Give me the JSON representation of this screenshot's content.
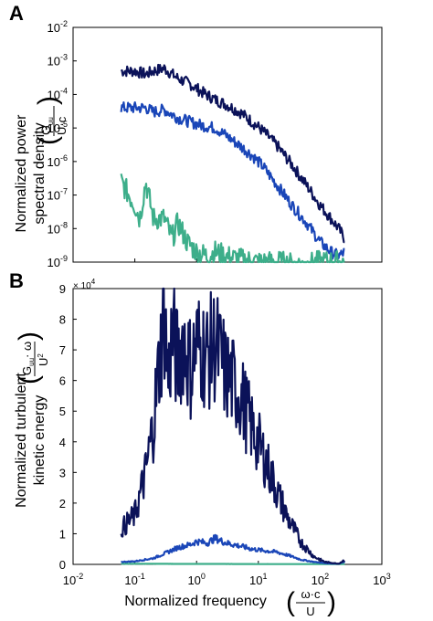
{
  "panel_a": {
    "letter": "A",
    "ylabel_line1": "Normalized power",
    "ylabel_line2": "spectral density",
    "frac_num": "G",
    "frac_num_sub": "uu",
    "frac_den": "U·c",
    "y_ticks": [
      {
        "base": "10",
        "exp": "-2"
      },
      {
        "base": "10",
        "exp": "-3"
      },
      {
        "base": "10",
        "exp": "-4"
      },
      {
        "base": "10",
        "exp": "-5"
      },
      {
        "base": "10",
        "exp": "-6"
      },
      {
        "base": "10",
        "exp": "-7"
      },
      {
        "base": "10",
        "exp": "-8"
      },
      {
        "base": "10",
        "exp": "-9"
      }
    ]
  },
  "panel_b": {
    "letter": "B",
    "ylabel_line1": "Normalized turbulent",
    "ylabel_line2": "kinetic energy",
    "frac_num": "G",
    "frac_num_sub": "uu",
    "frac_num_rest": "· ω",
    "frac_den": "U",
    "frac_den_sup": "2",
    "multiplier": "× 10",
    "multiplier_exp": "4",
    "y_ticks": [
      "9",
      "8",
      "7",
      "6",
      "5",
      "4",
      "3",
      "2",
      "1",
      "0"
    ],
    "x_ticks": [
      {
        "base": "10",
        "exp": "-2"
      },
      {
        "base": "10",
        "exp": "-1"
      },
      {
        "base": "10",
        "exp": "0"
      },
      {
        "base": "10",
        "exp": "1"
      },
      {
        "base": "10",
        "exp": "2"
      },
      {
        "base": "10",
        "exp": "3"
      }
    ],
    "xlabel": "Normalized frequency",
    "xfrac_num": "ω·c",
    "xfrac_den": "U"
  },
  "chart_data": [
    {
      "type": "line",
      "panel": "A",
      "xscale": "log",
      "yscale": "log",
      "xlim": [
        0.01,
        1000
      ],
      "ylim": [
        1e-09,
        0.01
      ],
      "series": [
        {
          "color": "#0b1259",
          "x": [
            0.06,
            0.1,
            0.15,
            0.2,
            0.3,
            0.5,
            0.8,
            1.2,
            2,
            3,
            5,
            8,
            12,
            20,
            35,
            60,
            100,
            150,
            200,
            250
          ],
          "y": [
            0.0005,
            0.0005,
            0.0004,
            0.0005,
            0.0006,
            0.0003,
            0.0002,
            0.00012,
            7e-05,
            5e-05,
            3e-05,
            1.5e-05,
            8e-06,
            3e-06,
            8e-07,
            2e-07,
            5e-08,
            2e-08,
            1e-08,
            5e-09
          ]
        },
        {
          "color": "#1a46b8",
          "x": [
            0.06,
            0.1,
            0.15,
            0.2,
            0.3,
            0.5,
            0.8,
            1.2,
            2,
            3,
            5,
            8,
            12,
            20,
            35,
            60,
            100,
            150,
            200,
            250
          ],
          "y": [
            4e-05,
            4e-05,
            4e-05,
            3e-05,
            3.5e-05,
            2e-05,
            1.5e-05,
            1.2e-05,
            1e-05,
            6e-06,
            3e-06,
            1.5e-06,
            7e-07,
            2e-07,
            5e-08,
            1.5e-08,
            4e-09,
            2e-09,
            1.5e-09,
            2e-09
          ]
        },
        {
          "color": "#3dae8a",
          "x": [
            0.06,
            0.1,
            0.12,
            0.15,
            0.2,
            0.3,
            0.4,
            0.5,
            0.7,
            1,
            1.5,
            2,
            3,
            5,
            10,
            20,
            50,
            100,
            200,
            250
          ],
          "y": [
            2.5e-07,
            5e-08,
            2e-08,
            2.5e-07,
            2e-08,
            2e-08,
            5e-09,
            1.5e-08,
            4e-09,
            2e-09,
            1.5e-09,
            2e-09,
            1.5e-09,
            1.2e-09,
            1e-09,
            1e-09,
            8e-10,
            1e-09,
            1e-09,
            1e-09
          ]
        }
      ]
    },
    {
      "type": "line",
      "panel": "B",
      "xscale": "log",
      "xlim": [
        0.01,
        1000
      ],
      "ylim": [
        0,
        90000
      ],
      "series": [
        {
          "color": "#0b1259",
          "x": [
            0.06,
            0.1,
            0.15,
            0.2,
            0.25,
            0.3,
            0.35,
            0.4,
            0.5,
            0.6,
            0.8,
            1,
            1.5,
            2,
            3,
            5,
            8,
            12,
            20,
            30,
            50,
            80,
            120,
            200,
            250
          ],
          "y": [
            11500,
            16000,
            30000,
            46000,
            66000,
            82000,
            60000,
            76000,
            65000,
            74000,
            64000,
            72000,
            68000,
            72000,
            62000,
            56000,
            44000,
            36000,
            24000,
            15000,
            7000,
            2500,
            800,
            200,
            1500
          ]
        },
        {
          "color": "#1a46b8",
          "x": [
            0.06,
            0.1,
            0.2,
            0.3,
            0.5,
            0.8,
            1,
            1.5,
            2,
            3,
            5,
            8,
            12,
            20,
            30,
            50,
            80,
            120,
            200,
            250
          ],
          "y": [
            800,
            1000,
            2000,
            3500,
            5500,
            6500,
            7500,
            7000,
            8500,
            7000,
            6000,
            5000,
            4500,
            4000,
            3000,
            1500,
            800,
            400,
            200,
            1000
          ]
        },
        {
          "color": "#3dae8a",
          "x": [
            0.06,
            0.1,
            0.2,
            0.5,
            1,
            2,
            5,
            10,
            20,
            50,
            100,
            200,
            250
          ],
          "y": [
            200,
            200,
            200,
            150,
            150,
            150,
            120,
            100,
            100,
            80,
            80,
            80,
            100
          ]
        }
      ]
    }
  ]
}
